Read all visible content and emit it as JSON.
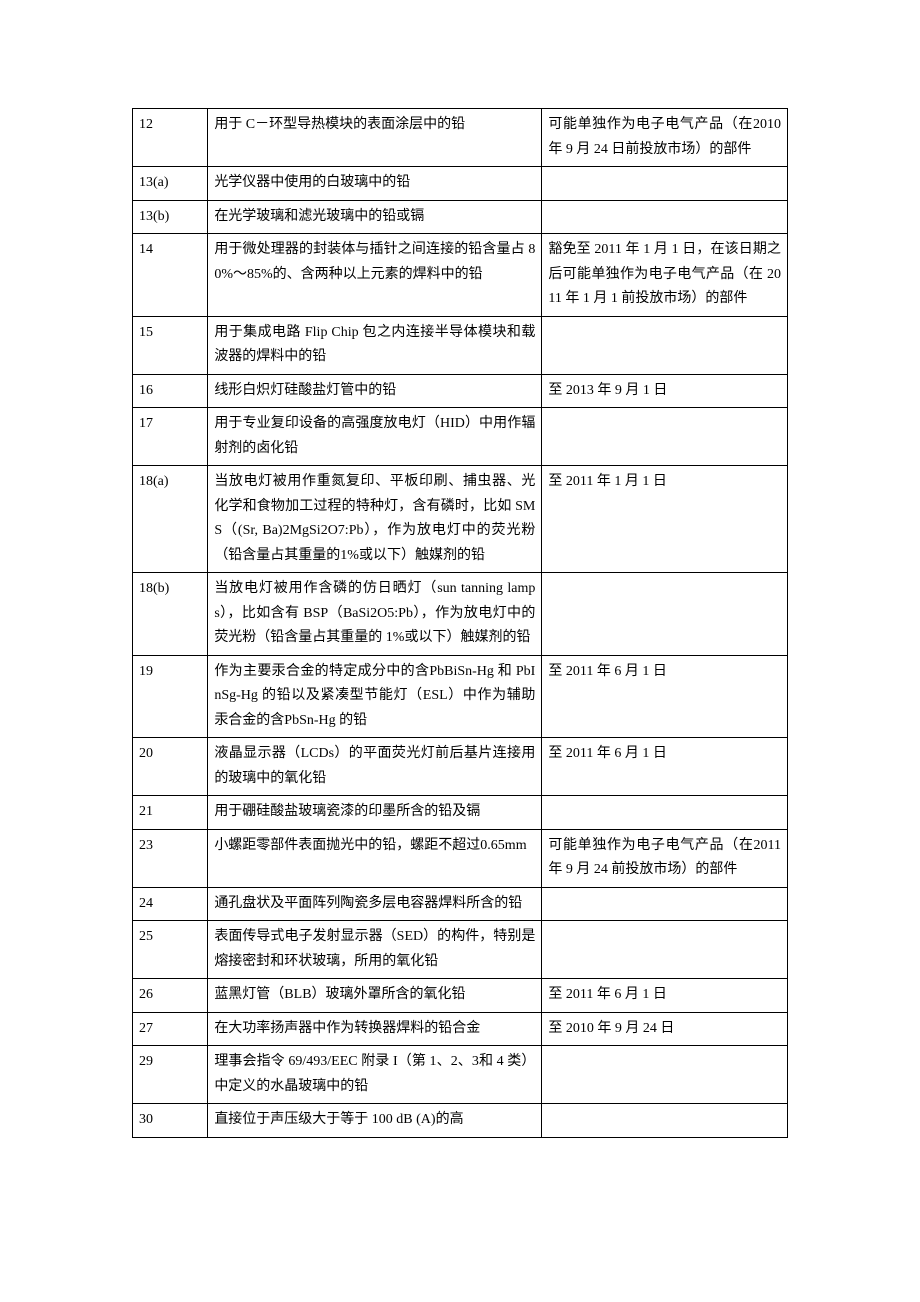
{
  "table": {
    "columns": [
      "col1",
      "col2",
      "col3"
    ],
    "column_widths": [
      "11.5%",
      "51%",
      "37.5%"
    ],
    "border_color": "#000000",
    "background_color": "#ffffff",
    "text_color": "#000000",
    "font_size": 14,
    "line_height": 1.75,
    "rows": [
      {
        "c0": "12",
        "c1": "用于 C－环型导热模块的表面涂层中的铅",
        "c2": "可能单独作为电子电气产品（在2010 年 9 月 24 日前投放市场）的部件"
      },
      {
        "c0": "13(a)",
        "c1": "光学仪器中使用的白玻璃中的铅",
        "c2": ""
      },
      {
        "c0": "13(b)",
        "c1": "在光学玻璃和滤光玻璃中的铅或镉",
        "c2": ""
      },
      {
        "c0": "14",
        "c1": "用于微处理器的封装体与插针之间连接的铅含量占 80%～85%的、含两种以上元素的焊料中的铅",
        "c2": "豁免至 2011 年 1 月 1 日，在该日期之后可能单独作为电子电气产品（在 2011 年 1 月 1 前投放市场）的部件"
      },
      {
        "c0": "15",
        "c1": "用于集成电路 Flip Chip 包之内连接半导体模块和载波器的焊料中的铅",
        "c2": ""
      },
      {
        "c0": "16",
        "c1": "线形白炽灯硅酸盐灯管中的铅",
        "c2": "至 2013 年 9 月 1 日"
      },
      {
        "c0": "17",
        "c1": "用于专业复印设备的高强度放电灯（HID）中用作辐射剂的卤化铅",
        "c2": ""
      },
      {
        "c0": "18(a)",
        "c1": "当放电灯被用作重氮复印、平板印刷、捕虫器、光化学和食物加工过程的特种灯，含有磷时，比如 SMS（(Sr, Ba)2MgSi2O7:Pb），作为放电灯中的荧光粉（铅含量占其重量的1%或以下）触媒剂的铅",
        "c2": "至 2011 年 1 月 1 日"
      },
      {
        "c0": "18(b)",
        "c1": "当放电灯被用作含磷的仿日晒灯（sun tanning lamps），比如含有 BSP（BaSi2O5:Pb），作为放电灯中的荧光粉（铅含量占其重量的 1%或以下）触媒剂的铅",
        "c2": ""
      },
      {
        "c0": "19",
        "c1": "作为主要汞合金的特定成分中的含PbBiSn-Hg 和 PbInSg-Hg 的铅以及紧凑型节能灯（ESL）中作为辅助汞合金的含PbSn-Hg 的铅",
        "c2": "至 2011 年 6 月 1 日"
      },
      {
        "c0": "20",
        "c1": "液晶显示器（LCDs）的平面荧光灯前后基片连接用的玻璃中的氧化铅",
        "c2": "至 2011 年 6 月 1 日"
      },
      {
        "c0": "21",
        "c1": "用于硼硅酸盐玻璃瓷漆的印墨所含的铅及镉",
        "c2": ""
      },
      {
        "c0": "23",
        "c1": "小螺距零部件表面抛光中的铅，螺距不超过0.65mm",
        "c2": "可能单独作为电子电气产品（在2011 年 9 月 24 前投放市场）的部件"
      },
      {
        "c0": "24",
        "c1": "通孔盘状及平面阵列陶瓷多层电容器焊料所含的铅",
        "c2": ""
      },
      {
        "c0": "25",
        "c1": "表面传导式电子发射显示器（SED）的构件，特别是熔接密封和环状玻璃，所用的氧化铅",
        "c2": ""
      },
      {
        "c0": "26",
        "c1": "蓝黑灯管（BLB）玻璃外罩所含的氧化铅",
        "c2": "至 2011 年 6 月 1 日"
      },
      {
        "c0": "27",
        "c1": "在大功率扬声器中作为转换器焊料的铅合金",
        "c2": "至 2010 年 9 月 24 日"
      },
      {
        "c0": "29",
        "c1": "理事会指令 69/493/EEC 附录 I（第 1、2、3和 4 类）中定义的水晶玻璃中的铅",
        "c2": ""
      },
      {
        "c0": "30",
        "c1": "直接位于声压级大于等于 100 dB (A)的高",
        "c2": ""
      }
    ]
  }
}
